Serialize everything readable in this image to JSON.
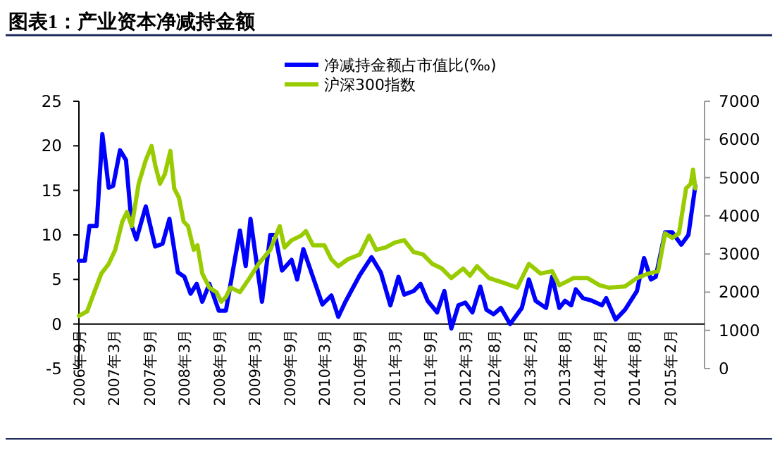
{
  "chart_data": {
    "type": "line",
    "title": "图表1：产业资本净减持金额",
    "legend": "top",
    "grid": false,
    "marker": "none",
    "line_style": "solid",
    "xlim": [
      "2006-09-01",
      "2015-08-01"
    ],
    "xticks": [
      {
        "value": "2006-09-01",
        "label": "2006年9月"
      },
      {
        "value": "2007-03-01",
        "label": "2007年3月"
      },
      {
        "value": "2007-09-01",
        "label": "2007年9月"
      },
      {
        "value": "2008-03-01",
        "label": "2008年3月"
      },
      {
        "value": "2008-09-01",
        "label": "2008年9月"
      },
      {
        "value": "2009-03-01",
        "label": "2009年3月"
      },
      {
        "value": "2009-09-01",
        "label": "2009年9月"
      },
      {
        "value": "2010-03-01",
        "label": "2010年3月"
      },
      {
        "value": "2010-09-01",
        "label": "2010年9月"
      },
      {
        "value": "2011-03-01",
        "label": "2011年3月"
      },
      {
        "value": "2011-09-01",
        "label": "2011年9月"
      },
      {
        "value": "2012-03-01",
        "label": "2012年3月"
      },
      {
        "value": "2012-08-01",
        "label": "2012年8月"
      },
      {
        "value": "2013-02-01",
        "label": "2013年2月"
      },
      {
        "value": "2013-08-01",
        "label": "2013年8月"
      },
      {
        "value": "2014-02-01",
        "label": "2014年2月"
      },
      {
        "value": "2014-08-01",
        "label": "2014年8月"
      },
      {
        "value": "2015-02-01",
        "label": "2015年2月"
      }
    ],
    "ylim": [
      -5,
      25
    ],
    "yticks": [
      -5,
      0,
      5,
      10,
      15,
      20,
      25
    ],
    "y2lim": [
      0,
      7000
    ],
    "y2ticks": [
      0,
      1000,
      2000,
      3000,
      4000,
      5000,
      6000,
      7000
    ],
    "series": [
      {
        "name": "净减持金额占市值比(‰)",
        "color": "#0000ff",
        "x": [
          "2006-09-01",
          "2006-10-02",
          "2006-10-26",
          "2006-12-02",
          "2007-01-01",
          "2007-02-03",
          "2007-02-26",
          "2007-04-03",
          "2007-05-04",
          "2007-06-03",
          "2007-06-27",
          "2007-08-15",
          "2007-10-03",
          "2007-11-10",
          "2007-12-16",
          "2008-01-29",
          "2008-03-03",
          "2008-04-04",
          "2008-05-06",
          "2008-06-04",
          "2008-07-11",
          "2008-08-29",
          "2008-10-05",
          "2008-12-17",
          "2009-01-16",
          "2009-02-10",
          "2009-04-11",
          "2009-05-24",
          "2009-06-18",
          "2009-07-24",
          "2009-09-12",
          "2009-10-11",
          "2009-11-12",
          "2010-02-19",
          "2010-04-07",
          "2010-05-13",
          "2010-06-19",
          "2010-09-02",
          "2010-11-02",
          "2010-12-20",
          "2011-02-08",
          "2011-03-22",
          "2011-04-21",
          "2011-06-09",
          "2011-07-15",
          "2011-08-21",
          "2011-10-09",
          "2011-11-16",
          "2011-12-22",
          "2012-01-28",
          "2012-03-04",
          "2012-04-10",
          "2012-05-21",
          "2012-06-22",
          "2012-07-29",
          "2012-09-05",
          "2012-10-23",
          "2012-12-23",
          "2013-01-29",
          "2013-03-05",
          "2013-04-28",
          "2013-05-30",
          "2013-07-06",
          "2013-08-05",
          "2013-09-06",
          "2013-09-30",
          "2013-11-06",
          "2013-12-24",
          "2014-02-13",
          "2014-03-07",
          "2014-04-25",
          "2014-06-13",
          "2014-08-14",
          "2014-09-20",
          "2014-10-26",
          "2014-11-20",
          "2015-01-08",
          "2015-02-14",
          "2015-04-02",
          "2015-05-09",
          "2015-06-14"
        ],
        "values": [
          7.1,
          7.1,
          11,
          11,
          21.3,
          15.3,
          15.5,
          19.5,
          18.4,
          11,
          9.5,
          13.2,
          8.7,
          9.0,
          11.8,
          5.8,
          5.3,
          3.4,
          4.5,
          2.5,
          4.5,
          1.5,
          1.5,
          10.5,
          6.5,
          11.8,
          2.5,
          10,
          10,
          6,
          7.2,
          5,
          8.4,
          2.2,
          3.2,
          0.8,
          2.5,
          5.5,
          7.5,
          5.8,
          2.1,
          5.3,
          3.3,
          3.7,
          4.5,
          2.6,
          1.3,
          3.7,
          -0.5,
          2.1,
          2.4,
          1.3,
          4.2,
          1.6,
          1.1,
          1.8,
          0,
          1.8,
          5,
          2.6,
          1.8,
          5.3,
          1.8,
          2.6,
          2.1,
          3.9,
          2.9,
          2.6,
          2.1,
          2.9,
          0.5,
          1.6,
          3.7,
          7.4,
          5,
          5.3,
          10.3,
          10.3,
          8.9,
          10,
          15.5
        ]
      },
      {
        "name": "沪深300指数",
        "color": "#99cc00",
        "axis": "y2",
        "x": [
          "2006-09-01",
          "2006-10-14",
          "2006-11-20",
          "2006-12-27",
          "2007-02-03",
          "2007-03-09",
          "2007-04-15",
          "2007-05-09",
          "2007-06-03",
          "2007-07-09",
          "2007-08-15",
          "2007-09-14",
          "2007-10-03",
          "2007-10-28",
          "2007-11-22",
          "2007-12-21",
          "2008-01-10",
          "2008-02-04",
          "2008-02-28",
          "2008-03-22",
          "2008-04-21",
          "2008-05-10",
          "2008-06-04",
          "2008-07-11",
          "2008-08-17",
          "2008-09-11",
          "2008-10-05",
          "2008-10-29",
          "2008-12-17",
          "2009-02-05",
          "2009-03-24",
          "2009-05-24",
          "2009-07-12",
          "2009-08-06",
          "2009-09-12",
          "2009-10-31",
          "2009-11-25",
          "2010-01-01",
          "2010-03-01",
          "2010-04-07",
          "2010-05-13",
          "2010-07-01",
          "2010-09-02",
          "2010-10-20",
          "2010-11-26",
          "2011-01-14",
          "2011-03-03",
          "2011-04-21",
          "2011-06-09",
          "2011-07-27",
          "2011-09-15",
          "2011-11-03",
          "2011-12-22",
          "2012-02-22",
          "2012-03-28",
          "2012-05-04",
          "2012-07-05",
          "2012-09-17",
          "2012-11-29",
          "2013-01-29",
          "2013-03-30",
          "2013-05-30",
          "2013-07-06",
          "2013-09-18",
          "2013-11-30",
          "2014-02-01",
          "2014-03-19",
          "2014-06-13",
          "2014-08-14",
          "2014-10-14",
          "2014-12-02",
          "2015-01-08",
          "2015-02-14",
          "2015-03-21",
          "2015-04-27",
          "2015-05-21",
          "2015-06-02",
          "2015-06-14"
        ],
        "values": [
          1380,
          1500,
          2000,
          2490,
          2740,
          3110,
          3850,
          4100,
          3730,
          4840,
          5460,
          5830,
          5330,
          4840,
          5090,
          5700,
          4720,
          4470,
          3850,
          3730,
          3110,
          3230,
          2490,
          2120,
          2000,
          1750,
          1870,
          2120,
          2000,
          2370,
          2740,
          3110,
          3730,
          3170,
          3360,
          3480,
          3600,
          3230,
          3230,
          2860,
          2680,
          2860,
          2990,
          3480,
          3110,
          3170,
          3300,
          3360,
          3050,
          2990,
          2740,
          2620,
          2370,
          2620,
          2430,
          2680,
          2370,
          2250,
          2120,
          2740,
          2490,
          2550,
          2180,
          2370,
          2370,
          2180,
          2120,
          2150,
          2370,
          2490,
          2550,
          3540,
          3420,
          3540,
          4720,
          4840,
          5210,
          4720
        ]
      }
    ]
  }
}
